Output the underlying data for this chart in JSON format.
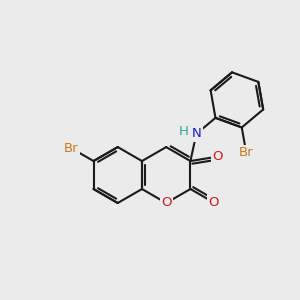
{
  "fig_bg": "#ebebeb",
  "bond_color": "#1a1a1a",
  "bond_lw": 1.5,
  "atom_colors": {
    "Br": "#c87820",
    "N": "#1a1acc",
    "O": "#cc1a1a",
    "H": "#2aaa99"
  },
  "font_size": 9.5,
  "xlim": [
    0,
    10
  ],
  "ylim": [
    0,
    10
  ],
  "ring_r": 0.95
}
